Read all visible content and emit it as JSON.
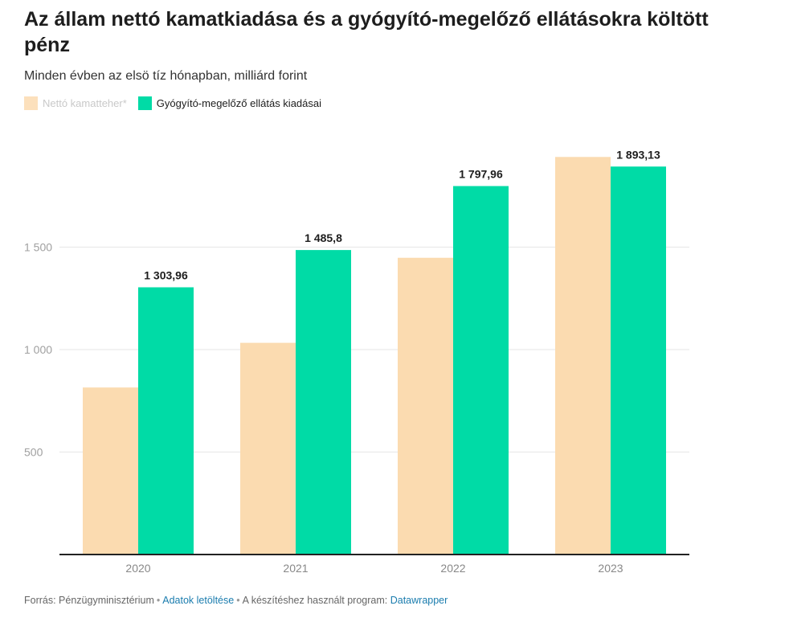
{
  "title": "Az állam nettó kamatkiadása és a gyógyító-megelőző ellátásokra költött pénz",
  "subtitle": "Minden évben az elsö tíz hónapban, milliárd forint",
  "legend": [
    {
      "label": "Nettó kamatteher*",
      "color": "#fbdbb0",
      "dimmed": true
    },
    {
      "label": "Gyógyító-megelőző ellátás kiadásai",
      "color": "#00dba6",
      "dimmed": false
    }
  ],
  "chart_data": {
    "type": "bar",
    "categories": [
      "2020",
      "2021",
      "2022",
      "2023"
    ],
    "series": [
      {
        "name": "Nettó kamatteher*",
        "values": [
          815,
          1033,
          1448,
          1940
        ],
        "color": "#fbdbb0",
        "labeled": false
      },
      {
        "name": "Gyógyító-megelőző ellátás kiadásai",
        "values": [
          1303.96,
          1485.8,
          1797.96,
          1893.13
        ],
        "color": "#00dba6",
        "labeled": true
      }
    ],
    "data_labels": [
      "1 303,96",
      "1 485,8",
      "1 797,96",
      "1 893,13"
    ],
    "yticks": [
      500,
      1000,
      1500
    ],
    "ytick_labels": [
      "500",
      "1 000",
      "1 500"
    ],
    "ylim": [
      0,
      2000
    ],
    "grid": true,
    "legend_position": "top-left"
  },
  "footer": {
    "source": "Forrás: Pénzügyminisztérium",
    "download_label": "Adatok letöltése",
    "made_with": "A készítéshez használt program:",
    "tool_label": "Datawrapper"
  }
}
